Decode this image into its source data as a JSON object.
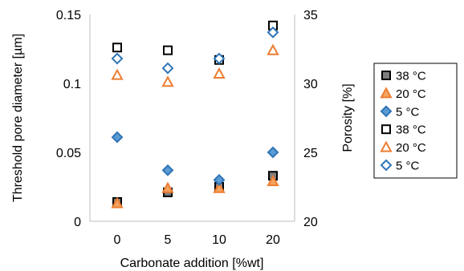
{
  "chart_data": {
    "type": "scatter",
    "xlabel": "Carbonate addition [%wt]",
    "ylabel_left": "Threshold pore diameter [µm]",
    "ylabel_right": "Porosity [%]",
    "categories": [
      "0",
      "5",
      "10",
      "20"
    ],
    "y_left_ticks": [
      "0",
      "0.05",
      "0.1",
      "0.15"
    ],
    "y_right_ticks": [
      "20",
      "25",
      "30",
      "35"
    ],
    "ylim_left": [
      0,
      0.15
    ],
    "ylim_right": [
      20,
      35
    ],
    "legend_position": "right",
    "grid": false,
    "series": [
      {
        "name": "38 °C",
        "axis": "left",
        "marker": "square",
        "filled": true,
        "color": "#7f7f7f",
        "edge": "#000000",
        "values": [
          0.014,
          0.021,
          0.025,
          0.033
        ]
      },
      {
        "name": "20 °C",
        "axis": "left",
        "marker": "triangle",
        "filled": true,
        "color": "#f4a460",
        "edge": "#ed7d31",
        "values": [
          0.013,
          0.024,
          0.024,
          0.029
        ]
      },
      {
        "name": "5 °C",
        "axis": "left",
        "marker": "diamond",
        "filled": true,
        "color": "#5b9bd5",
        "edge": "#2e75b6",
        "values": [
          0.061,
          0.037,
          0.03,
          0.05
        ]
      },
      {
        "name": "38 °C",
        "axis": "right",
        "marker": "square",
        "filled": false,
        "color": "#ffffff",
        "edge": "#000000",
        "values": [
          32.6,
          32.4,
          31.7,
          34.2
        ]
      },
      {
        "name": "20 °C",
        "axis": "right",
        "marker": "triangle",
        "filled": false,
        "color": "#ffffff",
        "edge": "#ed7d31",
        "values": [
          30.6,
          30.1,
          30.7,
          32.4
        ]
      },
      {
        "name": "5 °C",
        "axis": "right",
        "marker": "diamond",
        "filled": false,
        "color": "#ffffff",
        "edge": "#2e75b6",
        "values": [
          31.8,
          31.1,
          31.8,
          33.7
        ]
      }
    ]
  }
}
